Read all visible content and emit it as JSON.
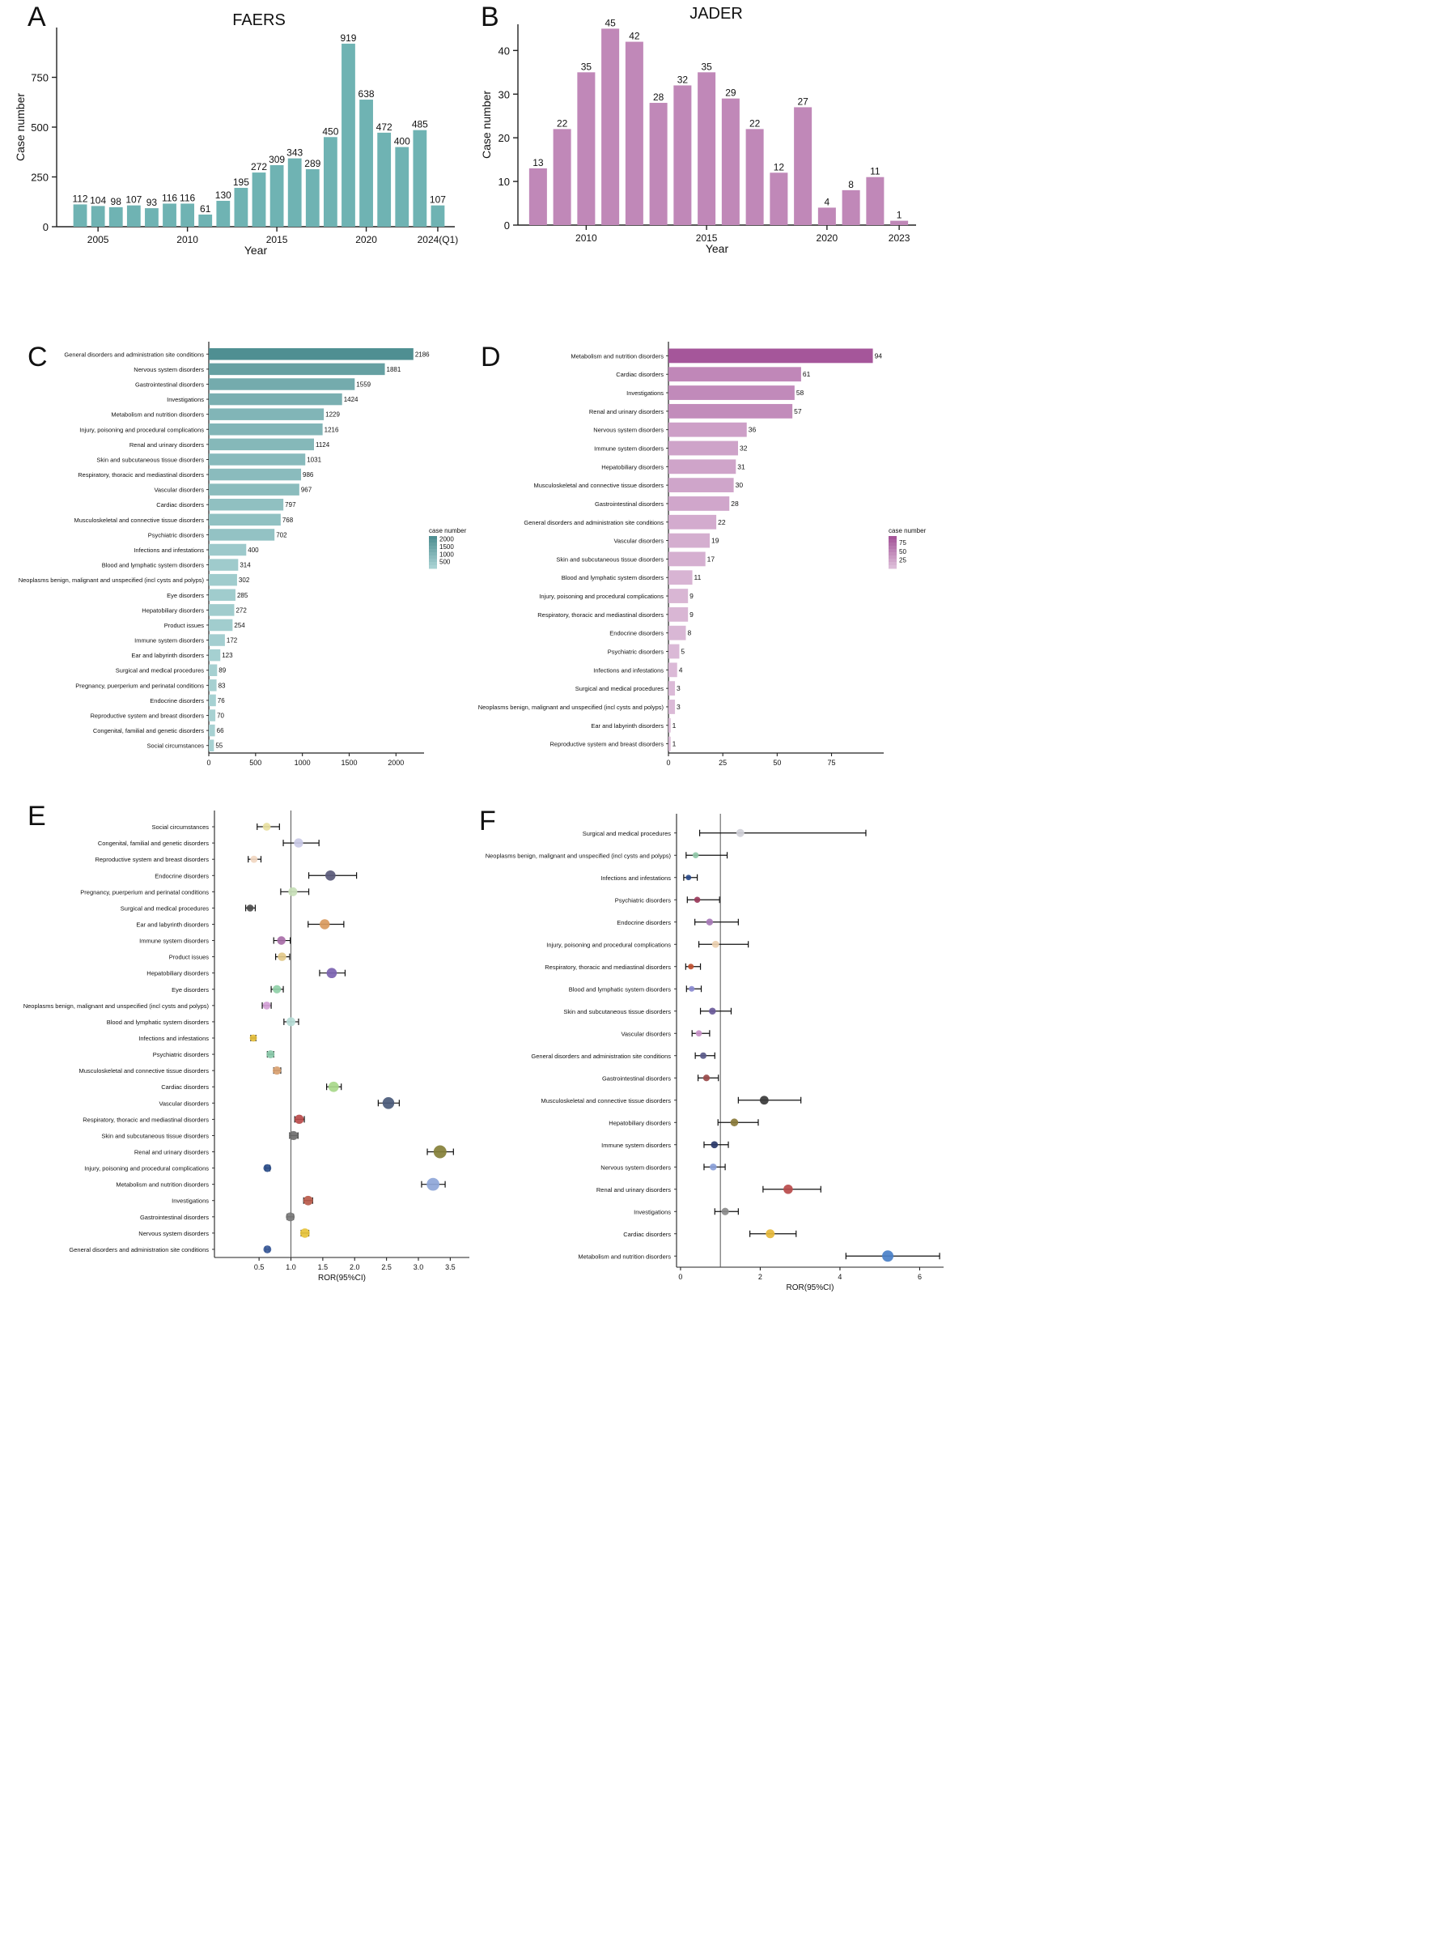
{
  "colors": {
    "faers_bar": "#6fb3b3",
    "jader_bar": "#c088b8",
    "faers_soc_dark": "#4f8f92",
    "faers_soc_light": "#a7d1d2",
    "jader_soc_dark": "#a5569a",
    "jader_soc_light": "#dcbcd8",
    "signal_label": "#c0504d",
    "normal_label": "#111111"
  },
  "chart_data": [
    {
      "panel": "A",
      "type": "bar",
      "title": "FAERS",
      "xlabel": "Year",
      "ylabel": "Case number",
      "categories": [
        "2004",
        "2005",
        "2006",
        "2007",
        "2008",
        "2009",
        "2010",
        "2011",
        "2012",
        "2013",
        "2014",
        "2015",
        "2016",
        "2017",
        "2018",
        "2019",
        "2020",
        "2021",
        "2022",
        "2023",
        "2024(Q1)"
      ],
      "values": [
        112,
        104,
        98,
        107,
        93,
        116,
        116,
        61,
        130,
        195,
        272,
        309,
        343,
        289,
        450,
        919,
        638,
        472,
        400,
        485,
        107
      ],
      "xticks": [
        "2005",
        "2010",
        "2015",
        "2020",
        "2024(Q1)"
      ],
      "yticks": [
        0,
        250,
        500,
        750
      ],
      "ylim": [
        0,
        1000
      ]
    },
    {
      "panel": "B",
      "type": "bar",
      "title": "JADER",
      "xlabel": "Year",
      "ylabel": "Case number",
      "categories": [
        "2008",
        "2009",
        "2010",
        "2011",
        "2012",
        "2013",
        "2014",
        "2015",
        "2016",
        "2017",
        "2018",
        "2019",
        "2020",
        "2021",
        "2022",
        "2023"
      ],
      "values": [
        13,
        22,
        35,
        45,
        42,
        28,
        32,
        35,
        29,
        22,
        12,
        27,
        4,
        8,
        11,
        1
      ],
      "xticks": [
        "2010",
        "2015",
        "2020",
        "2023"
      ],
      "yticks": [
        0,
        10,
        20,
        30,
        40
      ],
      "ylim": [
        0,
        46
      ]
    },
    {
      "panel": "C",
      "type": "bar",
      "orientation": "horizontal",
      "legend_title": "case number",
      "legend_ticks": [
        2000,
        1500,
        1000,
        500
      ],
      "categories": [
        "General disorders and administration site conditions",
        "Nervous system disorders",
        "Gastrointestinal disorders",
        "Investigations",
        "Metabolism and nutrition disorders",
        "Injury, poisoning and procedural complications",
        "Renal and urinary disorders",
        "Skin and subcutaneous tissue disorders",
        "Respiratory, thoracic and mediastinal disorders",
        "Vascular disorders",
        "Cardiac disorders",
        "Musculoskeletal and connective tissue disorders",
        "Psychiatric disorders",
        "Infections and infestations",
        "Blood and lymphatic system disorders",
        "Neoplasms benign, malignant and unspecified (incl cysts and polyps)",
        "Eye disorders",
        "Hepatobiliary disorders",
        "Product issues",
        "Immune system disorders",
        "Ear and labyrinth disorders",
        "Surgical and medical procedures",
        "Pregnancy, puerperium and perinatal conditions",
        "Endocrine disorders",
        "Reproductive system and breast disorders",
        "Congenital, familial and genetic disorders",
        "Social circumstances"
      ],
      "values": [
        2186,
        1881,
        1559,
        1424,
        1229,
        1216,
        1124,
        1031,
        986,
        967,
        797,
        768,
        702,
        400,
        314,
        302,
        285,
        272,
        254,
        172,
        123,
        89,
        83,
        76,
        70,
        66,
        55
      ],
      "xticks": [
        0,
        500,
        1000,
        1500,
        2000
      ],
      "xlim": [
        0,
        2300
      ]
    },
    {
      "panel": "D",
      "type": "bar",
      "orientation": "horizontal",
      "legend_title": "case number",
      "legend_ticks": [
        75,
        50,
        25
      ],
      "categories": [
        "Metabolism and nutrition disorders",
        "Cardiac disorders",
        "Investigations",
        "Renal and urinary disorders",
        "Nervous system disorders",
        "Immune system disorders",
        "Hepatobiliary disorders",
        "Musculoskeletal and connective tissue disorders",
        "Gastrointestinal disorders",
        "General disorders and administration site conditions",
        "Vascular disorders",
        "Skin and subcutaneous tissue disorders",
        "Blood and lymphatic system disorders",
        "Injury, poisoning and procedural complications",
        "Respiratory, thoracic and mediastinal disorders",
        "Endocrine disorders",
        "Psychiatric disorders",
        "Infections and infestations",
        "Surgical and medical procedures",
        "Neoplasms benign, malignant and unspecified (incl cysts and polyps)",
        "Ear and labyrinth disorders",
        "Reproductive system and breast disorders"
      ],
      "values": [
        94,
        61,
        58,
        57,
        36,
        32,
        31,
        30,
        28,
        22,
        19,
        17,
        11,
        9,
        9,
        8,
        5,
        4,
        3,
        3,
        1,
        1
      ],
      "xticks": [
        0,
        25,
        50,
        75
      ],
      "xlim": [
        0,
        99
      ]
    },
    {
      "panel": "E",
      "type": "scatter",
      "subtype": "forest",
      "xlabel": "ROR(95%CI)",
      "xticks": [
        "0.5",
        "1.0",
        "1.5",
        "2.0",
        "2.5",
        "3.0",
        "3.5"
      ],
      "xlim": [
        -0.2,
        3.8
      ],
      "reference_line": 1.0,
      "rows": [
        {
          "label": "Social circumstances",
          "ror": 0.62,
          "lo": 0.47,
          "hi": 0.82,
          "signal": false,
          "color": "#e8e0a0"
        },
        {
          "label": "Congenital, familial and genetic disorders",
          "ror": 1.12,
          "lo": 0.88,
          "hi": 1.44,
          "signal": false,
          "color": "#c9c9e6"
        },
        {
          "label": "Reproductive system and breast disorders",
          "ror": 0.42,
          "lo": 0.33,
          "hi": 0.53,
          "signal": false,
          "color": "#f1d7c1"
        },
        {
          "label": "Endocrine disorders",
          "ror": 1.62,
          "lo": 1.28,
          "hi": 2.03,
          "signal": true,
          "color": "#5a5a7a"
        },
        {
          "label": "Pregnancy, puerperium and perinatal conditions",
          "ror": 1.03,
          "lo": 0.84,
          "hi": 1.28,
          "signal": false,
          "color": "#c8e0b8"
        },
        {
          "label": "Surgical and medical procedures",
          "ror": 0.36,
          "lo": 0.29,
          "hi": 0.44,
          "signal": false,
          "color": "#4d4d4d"
        },
        {
          "label": "Ear and labyrinth disorders",
          "ror": 1.53,
          "lo": 1.27,
          "hi": 1.83,
          "signal": true,
          "color": "#d99a5e"
        },
        {
          "label": "Immune system disorders",
          "ror": 0.85,
          "lo": 0.73,
          "hi": 0.99,
          "signal": false,
          "color": "#a86ea8"
        },
        {
          "label": "Product issues",
          "ror": 0.86,
          "lo": 0.76,
          "hi": 0.98,
          "signal": false,
          "color": "#e2c98a"
        },
        {
          "label": "Hepatobiliary disorders",
          "ror": 1.64,
          "lo": 1.45,
          "hi": 1.85,
          "signal": true,
          "color": "#7b62b0"
        },
        {
          "label": "Eye disorders",
          "ror": 0.78,
          "lo": 0.69,
          "hi": 0.88,
          "signal": false,
          "color": "#90d0a8"
        },
        {
          "label": "Neoplasms benign, malignant and unspecified (incl cysts and polyps)",
          "ror": 0.62,
          "lo": 0.55,
          "hi": 0.69,
          "signal": false,
          "color": "#d3a0d6"
        },
        {
          "label": "Blood and lymphatic system disorders",
          "ror": 1.0,
          "lo": 0.89,
          "hi": 1.12,
          "signal": false,
          "color": "#b6dcd6"
        },
        {
          "label": "Infections and infestations",
          "ror": 0.41,
          "lo": 0.37,
          "hi": 0.45,
          "signal": false,
          "color": "#e3bd3a"
        },
        {
          "label": "Psychiatric disorders",
          "ror": 0.68,
          "lo": 0.63,
          "hi": 0.73,
          "signal": false,
          "color": "#88c8a8"
        },
        {
          "label": "Musculoskeletal and connective tissue disorders",
          "ror": 0.78,
          "lo": 0.73,
          "hi": 0.84,
          "signal": false,
          "color": "#d8a070"
        },
        {
          "label": "Cardiac disorders",
          "ror": 1.67,
          "lo": 1.56,
          "hi": 1.79,
          "signal": true,
          "color": "#a8d88a"
        },
        {
          "label": "Vascular disorders",
          "ror": 2.53,
          "lo": 2.37,
          "hi": 2.7,
          "signal": true,
          "color": "#4a5a7a"
        },
        {
          "label": "Respiratory, thoracic and mediastinal disorders",
          "ror": 1.13,
          "lo": 1.06,
          "hi": 1.21,
          "signal": true,
          "color": "#b84a4a"
        },
        {
          "label": "Skin and subcutaneous tissue disorders",
          "ror": 1.04,
          "lo": 0.98,
          "hi": 1.11,
          "signal": false,
          "color": "#6e6e6e"
        },
        {
          "label": "Renal and urinary disorders",
          "ror": 3.34,
          "lo": 3.14,
          "hi": 3.55,
          "signal": true,
          "color": "#85803a"
        },
        {
          "label": "Injury, poisoning and procedural complications",
          "ror": 0.63,
          "lo": 0.6,
          "hi": 0.67,
          "signal": false,
          "color": "#2b4e8a"
        },
        {
          "label": "Metabolism and nutrition disorders",
          "ror": 3.23,
          "lo": 3.05,
          "hi": 3.42,
          "signal": true,
          "color": "#8ea6d8"
        },
        {
          "label": "Investigations",
          "ror": 1.27,
          "lo": 1.2,
          "hi": 1.34,
          "signal": true,
          "color": "#b85a4a"
        },
        {
          "label": "Gastrointestinal disorders",
          "ror": 0.99,
          "lo": 0.94,
          "hi": 1.04,
          "signal": false,
          "color": "#7a7a7a"
        },
        {
          "label": "Nervous system disorders",
          "ror": 1.22,
          "lo": 1.16,
          "hi": 1.28,
          "signal": true,
          "color": "#e6c23a"
        },
        {
          "label": "General disorders and administration site conditions",
          "ror": 0.63,
          "lo": 0.6,
          "hi": 0.66,
          "signal": false,
          "color": "#3a5a9a"
        }
      ]
    },
    {
      "panel": "F",
      "type": "scatter",
      "subtype": "forest",
      "xlabel": "ROR(95%CI)",
      "xticks": [
        "0",
        "2",
        "4",
        "6"
      ],
      "xlim": [
        -0.1,
        6.6
      ],
      "reference_line": 1.0,
      "rows": [
        {
          "label": "Surgical and medical procedures",
          "ror": 1.5,
          "lo": 0.48,
          "hi": 4.65,
          "signal": false,
          "color": "#d0d0d8"
        },
        {
          "label": "Neoplasms benign, malignant and unspecified (incl cysts and polyps)",
          "ror": 0.38,
          "lo": 0.14,
          "hi": 1.17,
          "signal": false,
          "color": "#90c8a8"
        },
        {
          "label": "Infections and infestations",
          "ror": 0.2,
          "lo": 0.08,
          "hi": 0.42,
          "signal": false,
          "color": "#2a4a8a"
        },
        {
          "label": "Psychiatric disorders",
          "ror": 0.42,
          "lo": 0.17,
          "hi": 0.98,
          "signal": false,
          "color": "#9a3a5a"
        },
        {
          "label": "Endocrine disorders",
          "ror": 0.73,
          "lo": 0.36,
          "hi": 1.45,
          "signal": false,
          "color": "#a87ab8"
        },
        {
          "label": "Injury, poisoning and procedural complications",
          "ror": 0.88,
          "lo": 0.46,
          "hi": 1.7,
          "signal": false,
          "color": "#ecd0b0"
        },
        {
          "label": "Respiratory, thoracic and mediastinal disorders",
          "ror": 0.26,
          "lo": 0.13,
          "hi": 0.5,
          "signal": false,
          "color": "#c05030"
        },
        {
          "label": "Blood and lymphatic system disorders",
          "ror": 0.28,
          "lo": 0.15,
          "hi": 0.52,
          "signal": false,
          "color": "#8a8ad0"
        },
        {
          "label": "Skin and subcutaneous tissue disorders",
          "ror": 0.8,
          "lo": 0.5,
          "hi": 1.27,
          "signal": false,
          "color": "#6a5a9a"
        },
        {
          "label": "Vascular disorders",
          "ror": 0.46,
          "lo": 0.29,
          "hi": 0.73,
          "signal": false,
          "color": "#c890c8"
        },
        {
          "label": "General disorders and administration site conditions",
          "ror": 0.57,
          "lo": 0.37,
          "hi": 0.86,
          "signal": false,
          "color": "#5a5a8a"
        },
        {
          "label": "Gastrointestinal disorders",
          "ror": 0.65,
          "lo": 0.44,
          "hi": 0.95,
          "signal": false,
          "color": "#9a4a4a"
        },
        {
          "label": "Musculoskeletal and connective tissue disorders",
          "ror": 2.1,
          "lo": 1.45,
          "hi": 3.02,
          "signal": true,
          "color": "#3a3a3a"
        },
        {
          "label": "Hepatobiliary disorders",
          "ror": 1.35,
          "lo": 0.94,
          "hi": 1.95,
          "signal": false,
          "color": "#8a7a3a"
        },
        {
          "label": "Immune system disorders",
          "ror": 0.85,
          "lo": 0.59,
          "hi": 1.2,
          "signal": false,
          "color": "#2a3a6a"
        },
        {
          "label": "Nervous system disorders",
          "ror": 0.82,
          "lo": 0.59,
          "hi": 1.12,
          "signal": false,
          "color": "#8aa0d8"
        },
        {
          "label": "Renal and urinary disorders",
          "ror": 2.7,
          "lo": 2.07,
          "hi": 3.52,
          "signal": true,
          "color": "#b84a4a"
        },
        {
          "label": "Investigations",
          "ror": 1.12,
          "lo": 0.86,
          "hi": 1.45,
          "signal": false,
          "color": "#8a8a8a"
        },
        {
          "label": "Cardiac disorders",
          "ror": 2.25,
          "lo": 1.74,
          "hi": 2.9,
          "signal": true,
          "color": "#e6b83a"
        },
        {
          "label": "Metabolism and nutrition disorders",
          "ror": 5.2,
          "lo": 4.15,
          "hi": 6.5,
          "signal": true,
          "color": "#4a80c8"
        }
      ]
    }
  ]
}
